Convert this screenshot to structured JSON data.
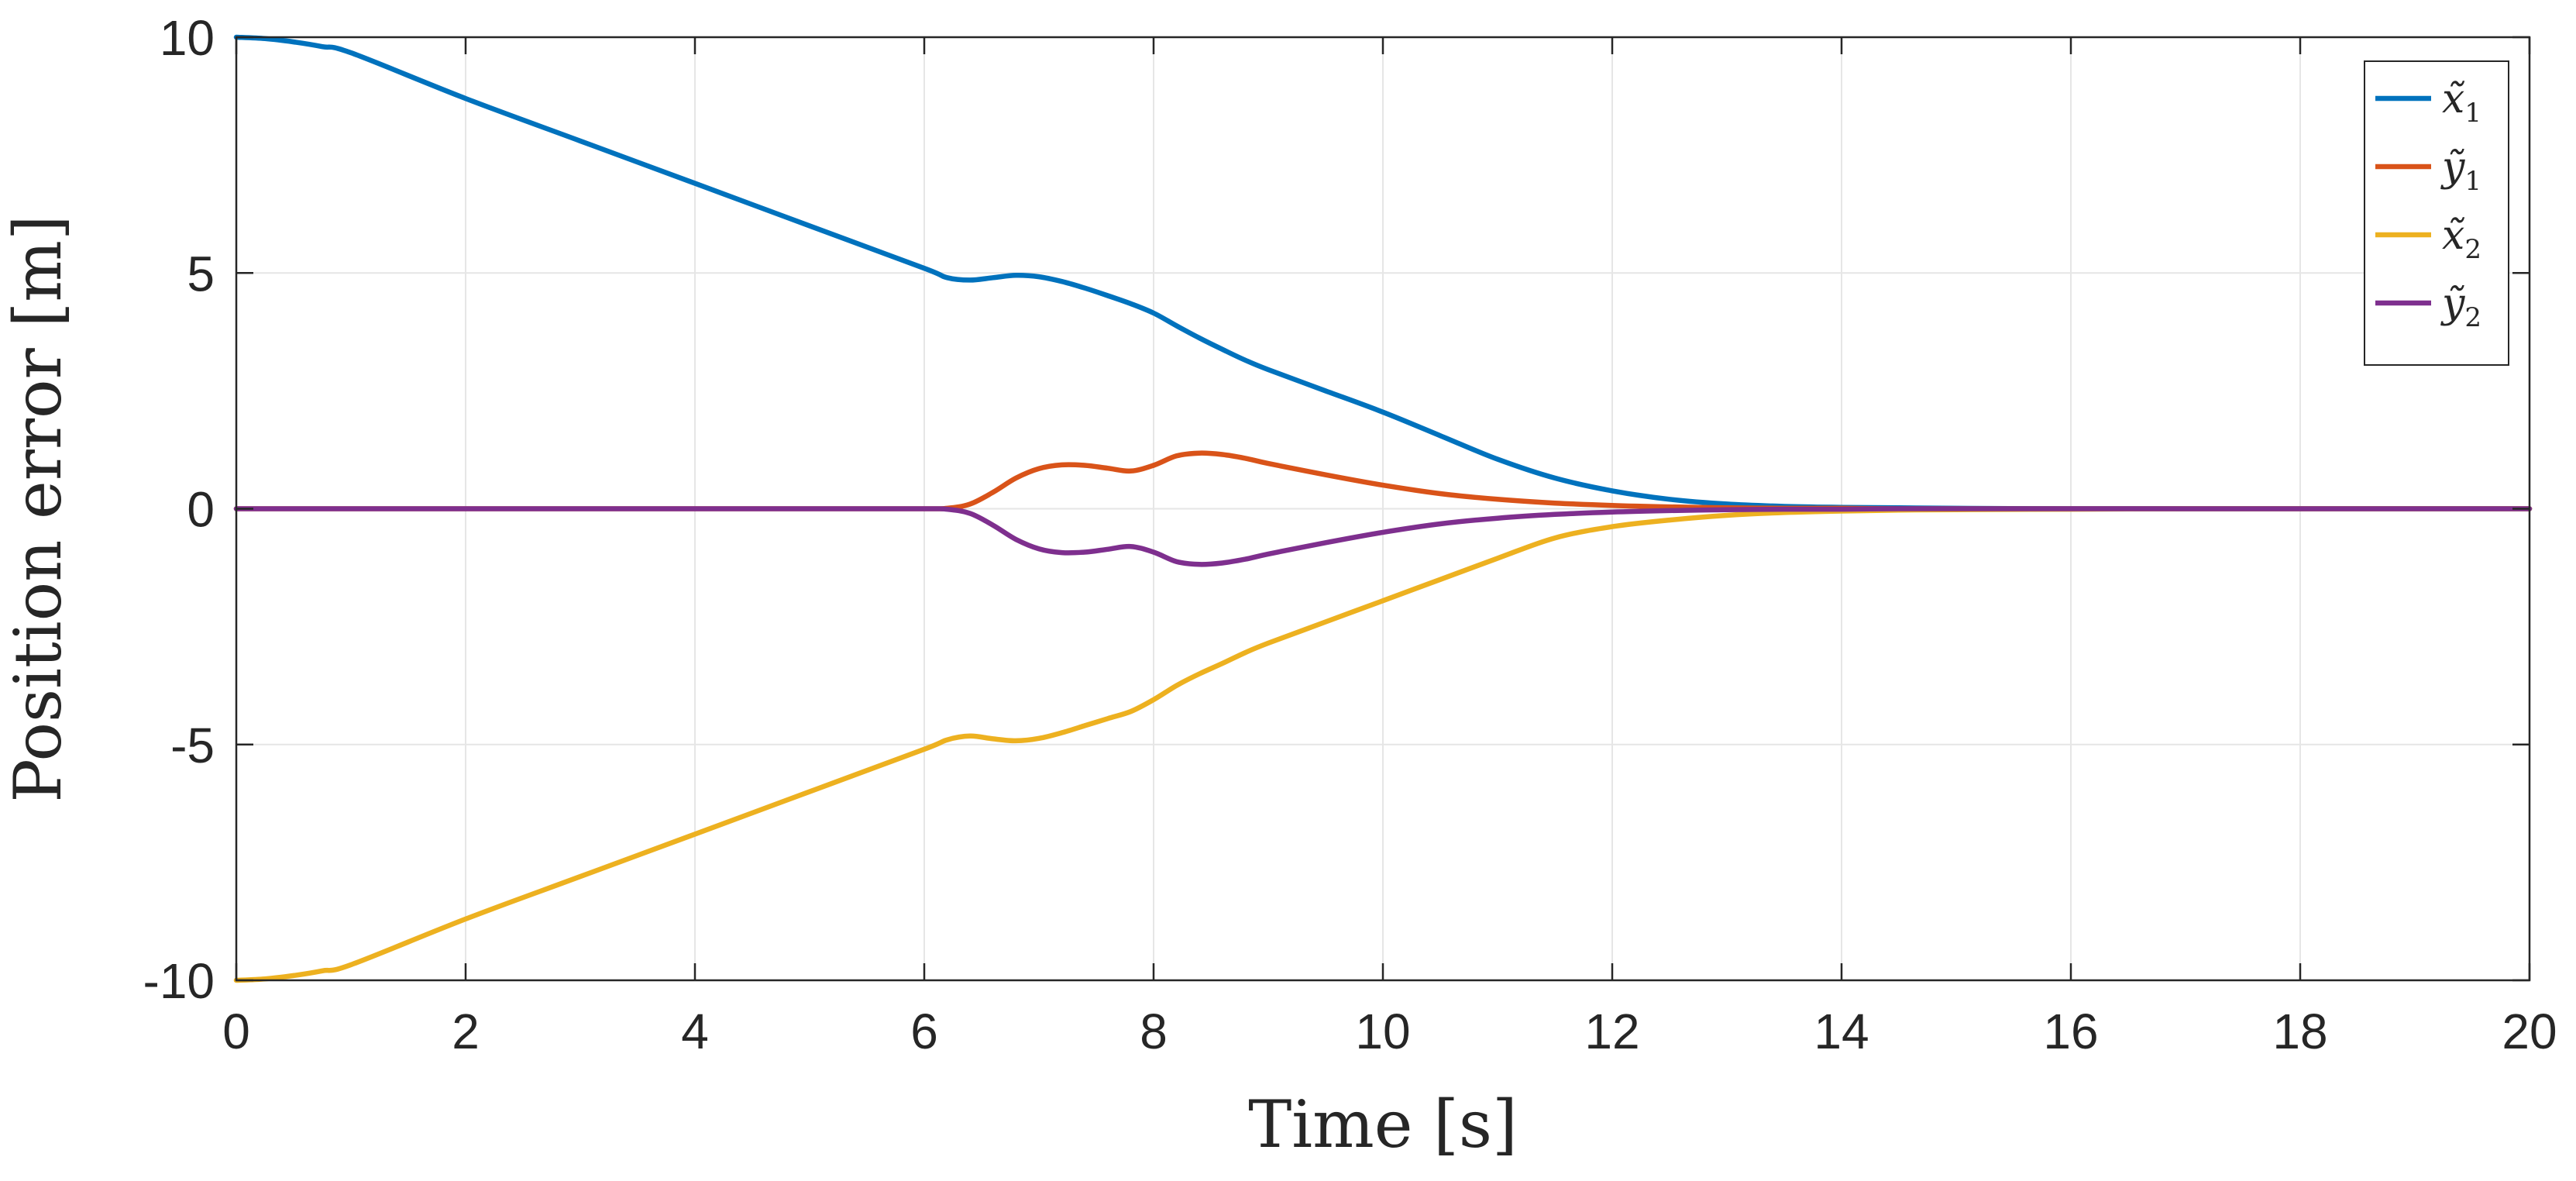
{
  "chart_data": {
    "type": "line",
    "title": "",
    "xlabel": "Time [s]",
    "ylabel": "Position error [m]",
    "xlim": [
      0,
      20
    ],
    "ylim": [
      -10,
      10
    ],
    "xticks": [
      0,
      2,
      4,
      6,
      8,
      10,
      12,
      14,
      16,
      18,
      20
    ],
    "yticks": [
      -10,
      -5,
      0,
      5,
      10
    ],
    "xtick_labels": [
      "0",
      "2",
      "4",
      "6",
      "8",
      "10",
      "12",
      "14",
      "16",
      "18",
      "20"
    ],
    "ytick_labels": [
      "-10",
      "-5",
      "0",
      "5",
      "10"
    ],
    "grid": true,
    "legend_position": "top-right",
    "x": [
      0,
      0.25,
      0.5,
      0.75,
      1,
      2,
      3,
      4,
      5,
      6,
      6.2,
      6.4,
      6.6,
      6.8,
      7,
      7.2,
      7.4,
      7.6,
      7.8,
      8,
      8.2,
      8.4,
      8.6,
      8.8,
      9,
      9.5,
      10,
      10.5,
      11,
      11.5,
      12,
      12.5,
      13,
      13.5,
      14,
      14.5,
      15,
      16,
      17,
      18,
      19,
      20
    ],
    "series": [
      {
        "name": "x̃",
        "subscript": "1",
        "color": "#0072BD",
        "values": [
          10,
          9.97,
          9.9,
          9.8,
          9.67,
          8.7,
          7.8,
          6.9,
          6.0,
          5.1,
          4.9,
          4.85,
          4.9,
          4.95,
          4.92,
          4.82,
          4.68,
          4.52,
          4.35,
          4.15,
          3.88,
          3.62,
          3.38,
          3.15,
          2.95,
          2.5,
          2.05,
          1.55,
          1.05,
          0.65,
          0.38,
          0.2,
          0.1,
          0.05,
          0.03,
          0.02,
          0.01,
          0,
          0,
          0,
          0,
          0
        ]
      },
      {
        "name": "ỹ",
        "subscript": "1",
        "color": "#D95319",
        "values": [
          0,
          0,
          0,
          0,
          0,
          0,
          0,
          0,
          0,
          0,
          0.01,
          0.1,
          0.35,
          0.65,
          0.85,
          0.93,
          0.92,
          0.86,
          0.8,
          0.92,
          1.12,
          1.18,
          1.15,
          1.07,
          0.96,
          0.72,
          0.5,
          0.32,
          0.2,
          0.12,
          0.07,
          0.04,
          0.02,
          0.01,
          0.01,
          0,
          0,
          0,
          0,
          0,
          0,
          0
        ]
      },
      {
        "name": "x̃",
        "subscript": "2",
        "color": "#EDB120",
        "values": [
          -10,
          -9.97,
          -9.9,
          -9.8,
          -9.67,
          -8.7,
          -7.8,
          -6.9,
          -6.0,
          -5.1,
          -4.9,
          -4.82,
          -4.88,
          -4.92,
          -4.87,
          -4.75,
          -4.6,
          -4.45,
          -4.3,
          -4.05,
          -3.75,
          -3.5,
          -3.28,
          -3.05,
          -2.85,
          -2.4,
          -1.95,
          -1.5,
          -1.05,
          -0.62,
          -0.38,
          -0.24,
          -0.14,
          -0.08,
          -0.05,
          -0.03,
          -0.02,
          -0.01,
          0,
          0,
          0,
          0
        ]
      },
      {
        "name": "ỹ",
        "subscript": "2",
        "color": "#7E2F8E",
        "values": [
          0,
          0,
          0,
          0,
          0,
          0,
          0,
          0,
          0,
          0,
          -0.01,
          -0.1,
          -0.35,
          -0.65,
          -0.85,
          -0.93,
          -0.92,
          -0.86,
          -0.8,
          -0.92,
          -1.12,
          -1.18,
          -1.15,
          -1.07,
          -0.96,
          -0.72,
          -0.5,
          -0.32,
          -0.2,
          -0.12,
          -0.07,
          -0.04,
          -0.02,
          -0.01,
          -0.01,
          0,
          0,
          0,
          0,
          0,
          0,
          0
        ]
      }
    ]
  }
}
